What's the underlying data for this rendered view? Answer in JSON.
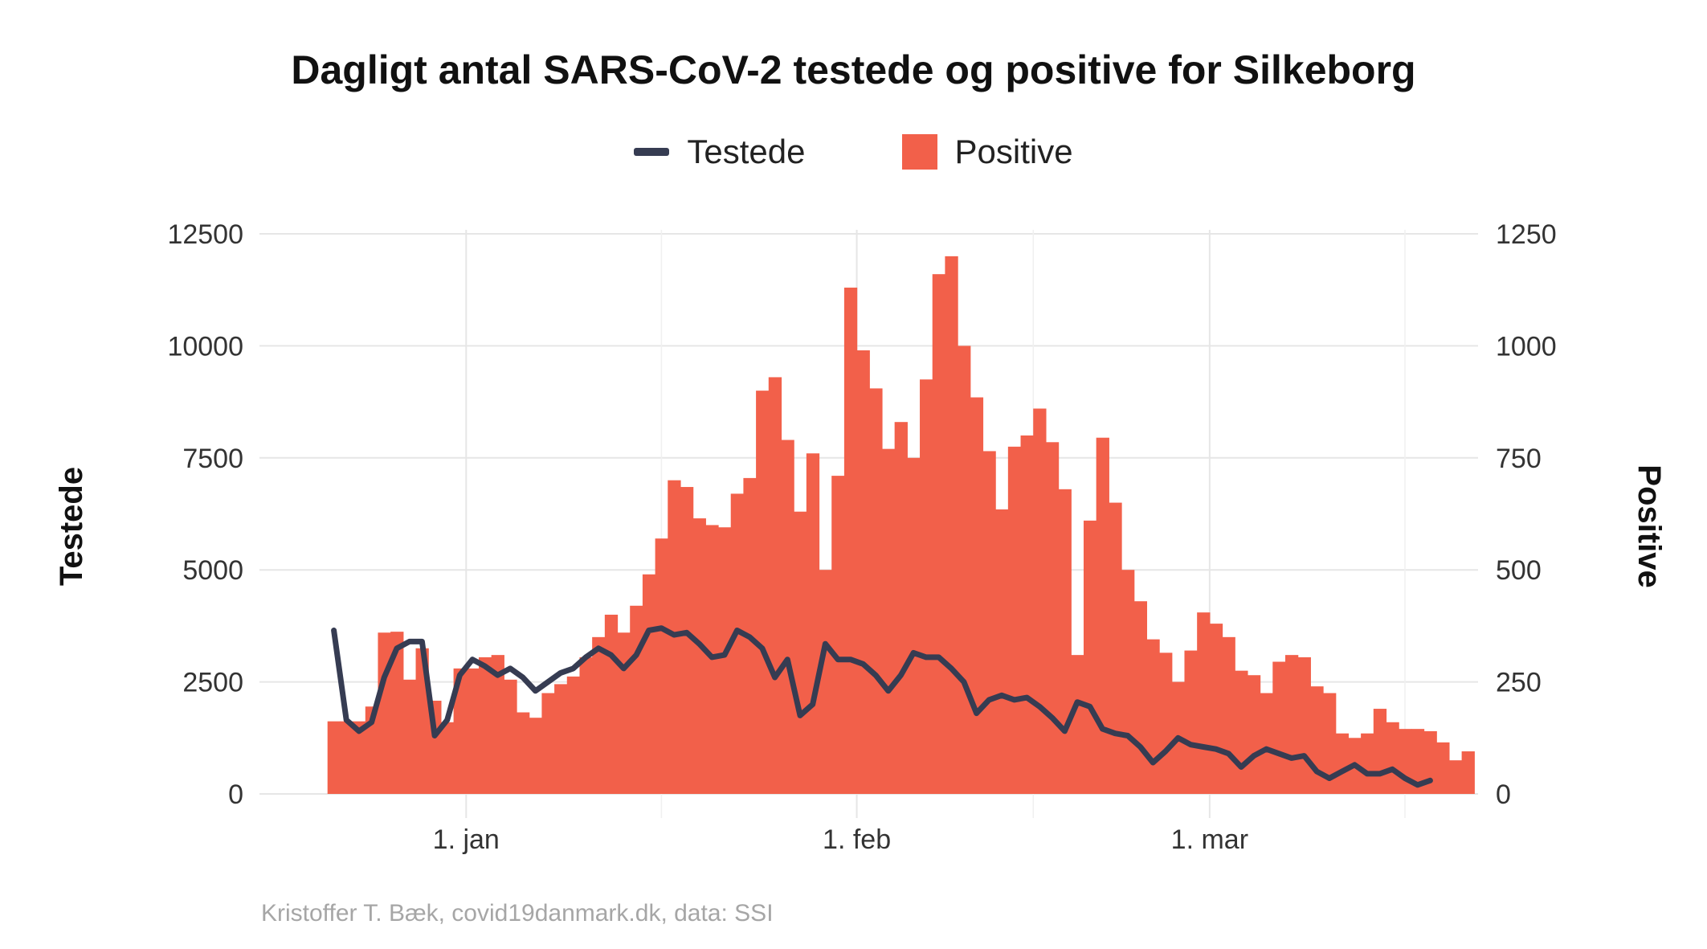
{
  "chart_data": {
    "type": "bar+line",
    "title": "Dagligt antal SARS-CoV-2 testede og positive for Silkeborg",
    "caption": "Kristoffer T. Bæk, covid19danmark.dk, data: SSI",
    "legend": [
      {
        "name": "Testede",
        "kind": "line",
        "color": "#363C52"
      },
      {
        "name": "Positive",
        "kind": "bar",
        "color": "#F2604A"
      }
    ],
    "ylabel_left": "Testede",
    "ylabel_right": "Positive",
    "y_left": {
      "lim": [
        0,
        12500
      ],
      "ticks": [
        0,
        2500,
        5000,
        7500,
        10000,
        12500
      ]
    },
    "y_right": {
      "lim": [
        0,
        1250
      ],
      "ticks": [
        0,
        250,
        500,
        750,
        1000,
        1250
      ]
    },
    "x_start_date": "2020-12-21",
    "x_range_days": [
      -5.4,
      91.3
    ],
    "x_ticks": [
      {
        "label": "1. jan",
        "day": 11
      },
      {
        "label": "1. feb",
        "day": 42
      },
      {
        "label": "1. mar",
        "day": 70
      }
    ],
    "x_minor_days": [
      26.5,
      56,
      85.5
    ],
    "positive_series": {
      "name": "Positive",
      "start_day": 0,
      "values": [
        162,
        162,
        162,
        195,
        360,
        362,
        255,
        325,
        208,
        160,
        280,
        280,
        305,
        310,
        255,
        182,
        170,
        225,
        245,
        262,
        305,
        350,
        400,
        360,
        420,
        490,
        570,
        700,
        685,
        615,
        600,
        595,
        670,
        705,
        900,
        930,
        790,
        630,
        760,
        500,
        710,
        1130,
        990,
        905,
        770,
        830,
        750,
        925,
        1160,
        1200,
        1000,
        885,
        765,
        635,
        775,
        800,
        860,
        785,
        680,
        310,
        610,
        795,
        650,
        500,
        430,
        345,
        315,
        250,
        320,
        405,
        380,
        350,
        275,
        265,
        225,
        295,
        310,
        305,
        240,
        225,
        135,
        125,
        135,
        190,
        160,
        145,
        145,
        140,
        115,
        75,
        95
      ]
    },
    "testede_series": {
      "name": "Testede",
      "start_day": 0.5,
      "values": [
        3650,
        1650,
        1400,
        1600,
        2600,
        3250,
        3400,
        3400,
        1300,
        1650,
        2650,
        3000,
        2850,
        2650,
        2800,
        2600,
        2300,
        2500,
        2700,
        2800,
        3050,
        3250,
        3100,
        2800,
        3100,
        3650,
        3700,
        3550,
        3600,
        3350,
        3050,
        3100,
        3650,
        3500,
        3250,
        2600,
        3000,
        1750,
        2000,
        3350,
        3000,
        3000,
        2900,
        2650,
        2300,
        2650,
        3150,
        3050,
        3050,
        2800,
        2500,
        1800,
        2100,
        2200,
        2100,
        2150,
        1950,
        1700,
        1400,
        2050,
        1950,
        1450,
        1350,
        1300,
        1050,
        700,
        950,
        1250,
        1100,
        1050,
        1000,
        900,
        600,
        850,
        1000,
        900,
        800,
        850,
        500,
        350,
        500,
        650,
        450,
        450,
        550,
        350,
        200,
        300
      ]
    }
  }
}
